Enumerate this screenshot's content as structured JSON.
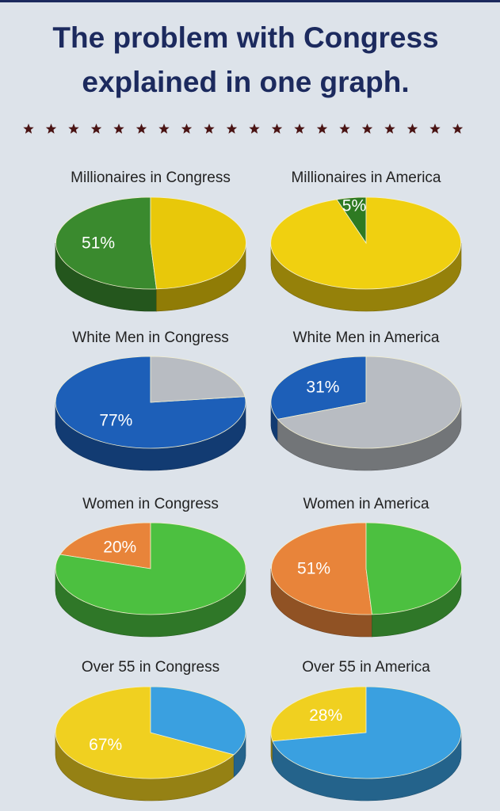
{
  "title": [
    "The problem with Congress",
    "explained in one graph."
  ],
  "chart_data": [
    {
      "type": "pie",
      "title": "Millionaires in Congress",
      "values": [
        51,
        49
      ],
      "value_labels": [
        "51%",
        null
      ],
      "colors": [
        "#3a8a2e",
        "#e8c80a"
      ]
    },
    {
      "type": "pie",
      "title": "Millionaires in America",
      "values": [
        5,
        95
      ],
      "value_labels": [
        "5%",
        null
      ],
      "colors": [
        "#2e7a22",
        "#f0d010"
      ]
    },
    {
      "type": "pie",
      "title": "White Men in Congress",
      "values": [
        77,
        23
      ],
      "value_labels": [
        "77%",
        null
      ],
      "colors": [
        "#1d5fb8",
        "#b8bcc2"
      ]
    },
    {
      "type": "pie",
      "title": "White Men in America",
      "values": [
        31,
        69
      ],
      "value_labels": [
        "31%",
        null
      ],
      "colors": [
        "#1d5fb8",
        "#b8bcc2"
      ]
    },
    {
      "type": "pie",
      "title": "Women in Congress",
      "values": [
        20,
        80
      ],
      "value_labels": [
        "20%",
        null
      ],
      "colors": [
        "#e8843a",
        "#4cc040"
      ]
    },
    {
      "type": "pie",
      "title": "Women in America",
      "values": [
        51,
        49
      ],
      "value_labels": [
        "51%",
        null
      ],
      "colors": [
        "#e8843a",
        "#4cc040"
      ]
    },
    {
      "type": "pie",
      "title": "Over 55 in Congress",
      "values": [
        67,
        33
      ],
      "value_labels": [
        "67%",
        null
      ],
      "colors": [
        "#f0d020",
        "#3aa0e0"
      ]
    },
    {
      "type": "pie",
      "title": "Over 55 in America",
      "values": [
        28,
        72
      ],
      "value_labels": [
        "28%",
        null
      ],
      "colors": [
        "#f0d020",
        "#3aa0e0"
      ]
    }
  ]
}
